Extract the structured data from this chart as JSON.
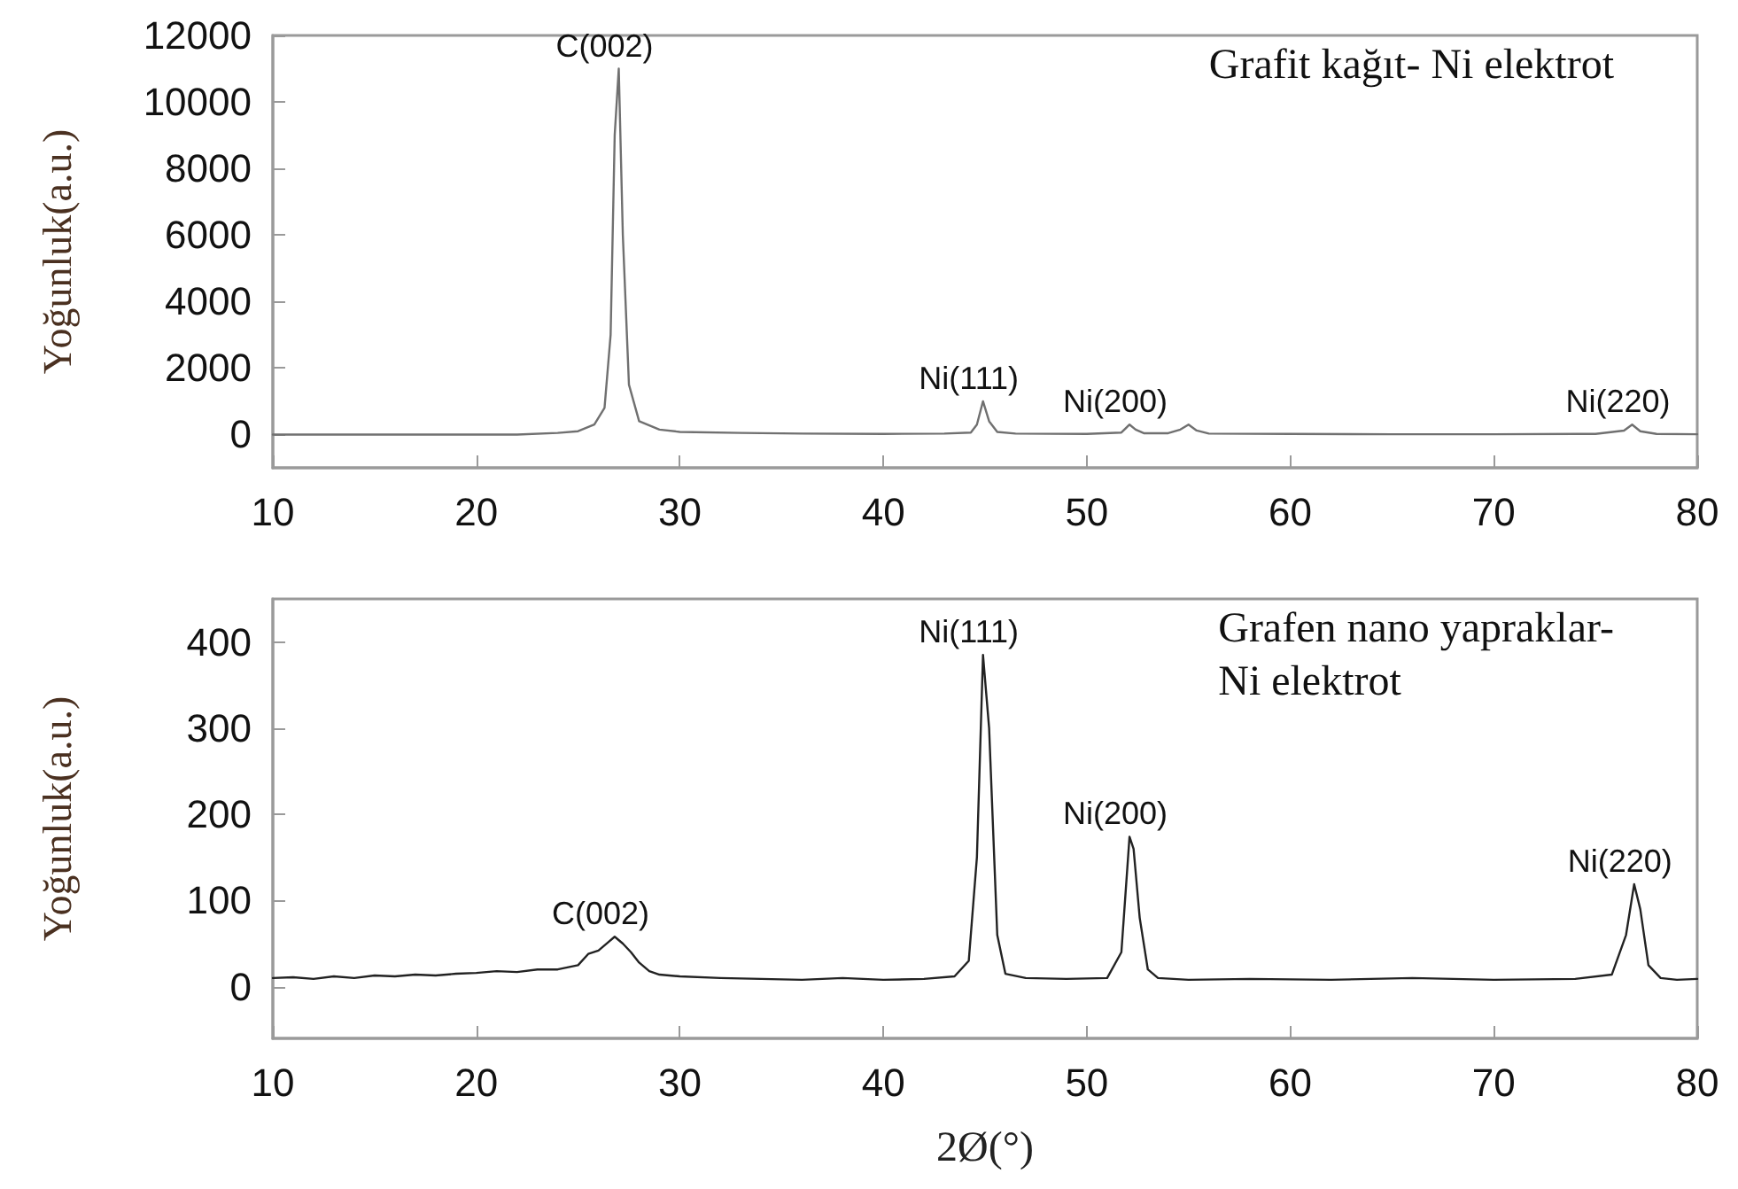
{
  "chart_data": [
    {
      "type": "line",
      "ylabel": "Yoğunluk(a.u.)",
      "xlim": [
        10,
        80
      ],
      "xticks": [
        10,
        20,
        30,
        40,
        50,
        60,
        70,
        80
      ],
      "ylim": [
        -1000,
        12000
      ],
      "yticks": [
        0,
        2000,
        4000,
        6000,
        8000,
        10000,
        12000
      ],
      "marker": "none",
      "line_style": "solid",
      "series": [
        {
          "color": "#707070",
          "x": [
            10,
            12,
            15,
            18,
            20,
            22,
            24,
            25,
            25.8,
            26.3,
            26.6,
            26.8,
            27.0,
            27.2,
            27.5,
            28,
            29,
            30,
            33,
            36,
            40,
            43,
            44.3,
            44.6,
            44.9,
            45.2,
            45.6,
            46.5,
            50,
            51.7,
            52.1,
            52.4,
            52.8,
            54,
            54.6,
            55,
            55.4,
            56,
            60,
            65,
            70,
            75,
            76.4,
            76.8,
            77.2,
            78,
            80
          ],
          "values": [
            0,
            0,
            0,
            0,
            0,
            0,
            50,
            100,
            300,
            800,
            3000,
            9000,
            11000,
            6000,
            1500,
            400,
            150,
            80,
            50,
            30,
            20,
            30,
            60,
            300,
            1000,
            400,
            80,
            30,
            20,
            60,
            300,
            150,
            40,
            40,
            150,
            300,
            120,
            30,
            20,
            10,
            10,
            20,
            120,
            300,
            100,
            20,
            10
          ]
        }
      ],
      "annotations": [
        {
          "text": "C(002)",
          "x": 27.0,
          "y": 11000
        },
        {
          "text": "Ni(111)",
          "x": 44.9,
          "y": 1000
        },
        {
          "text": "Ni(200)",
          "x": 52.1,
          "y": 300
        },
        {
          "text": "Ni(220)",
          "x": 76.8,
          "y": 300
        },
        "Grafit kağıt- Ni elektrot"
      ]
    },
    {
      "type": "line",
      "ylabel": "Yoğunluk(a.u.)",
      "xlabel": "2Ø(°)",
      "xlim": [
        10,
        80
      ],
      "xticks": [
        10,
        20,
        30,
        40,
        50,
        60,
        70,
        80
      ],
      "ylim": [
        -60,
        450
      ],
      "yticks": [
        0,
        100,
        200,
        300,
        400
      ],
      "marker": "none",
      "line_style": "solid",
      "series": [
        {
          "color": "#222222",
          "x": [
            10,
            11,
            12,
            13,
            14,
            15,
            16,
            17,
            18,
            19,
            20,
            21,
            22,
            23,
            24,
            25,
            25.5,
            26,
            26.5,
            26.8,
            27.2,
            27.6,
            28,
            28.5,
            29,
            30,
            32,
            34,
            36,
            38,
            40,
            42,
            43.5,
            44.2,
            44.6,
            44.9,
            45.2,
            45.6,
            46,
            47,
            49,
            51,
            51.7,
            52.1,
            52.3,
            52.6,
            53,
            53.5,
            55,
            58,
            62,
            66,
            70,
            74,
            75.8,
            76.5,
            76.9,
            77.2,
            77.6,
            78.2,
            79,
            80
          ],
          "values": [
            10,
            11,
            9,
            12,
            10,
            13,
            12,
            14,
            13,
            15,
            16,
            18,
            17,
            20,
            20,
            25,
            38,
            42,
            52,
            58,
            50,
            40,
            28,
            18,
            14,
            12,
            10,
            9,
            8,
            10,
            8,
            9,
            12,
            30,
            150,
            385,
            300,
            60,
            15,
            10,
            9,
            10,
            40,
            174,
            160,
            80,
            20,
            10,
            8,
            9,
            8,
            10,
            8,
            9,
            14,
            60,
            119,
            90,
            25,
            10,
            8,
            9
          ]
        }
      ],
      "annotations": [
        {
          "text": "C(002)",
          "x": 26.8,
          "y": 58
        },
        {
          "text": "Ni(111)",
          "x": 44.9,
          "y": 385
        },
        {
          "text": "Ni(200)",
          "x": 52.1,
          "y": 174
        },
        {
          "text": "Ni(220)",
          "x": 76.9,
          "y": 119
        },
        "Grafen nano yapraklar-\nNi elektrot"
      ]
    }
  ]
}
